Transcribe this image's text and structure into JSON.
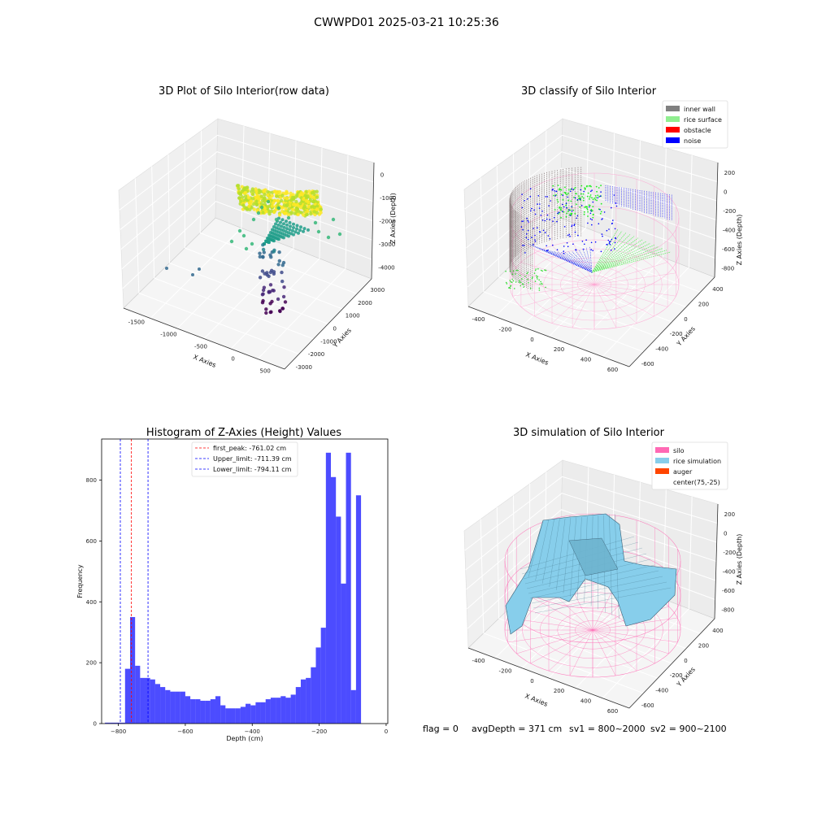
{
  "figure": {
    "title": "CWWPD01 2025-03-21 10:25:36",
    "status": {
      "flag": "flag = 0",
      "avg_depth": "avgDepth = 371 cm",
      "sv1": "sv1 = 800~2000",
      "sv2": "sv2 = 900~2100"
    }
  },
  "chart_data": [
    {
      "type": "scatter",
      "title": "3D Plot of Silo Interior(row data)",
      "xlabel": "X Axies",
      "ylabel": "Y Axies",
      "zlabel": "Z Axies (Depth)",
      "x_ticks": [
        "-1500",
        "-1000",
        "-500",
        "0",
        "500"
      ],
      "y_ticks": [
        "-3000",
        "-2000",
        "-1000",
        "0",
        "1000",
        "2000",
        "3000"
      ],
      "z_ticks": [
        "0",
        "-1000",
        "-2000",
        "-3000",
        "-4000"
      ],
      "colormap": "viridis",
      "note_points": "point cloud colored by depth (yellow = shallow, purple = deep)"
    },
    {
      "type": "scatter",
      "title": "3D classify of Silo Interior",
      "xlabel": "X Axies",
      "ylabel": "Y Axies",
      "zlabel": "Z Axies (Depth)",
      "x_ticks": [
        "-400",
        "-200",
        "0",
        "200",
        "400",
        "600"
      ],
      "y_ticks": [
        "-600",
        "-400",
        "-200",
        "0",
        "200",
        "400"
      ],
      "z_ticks": [
        "200",
        "0",
        "-200",
        "-400",
        "-600",
        "-800"
      ],
      "legend": [
        {
          "label": "inner wall",
          "color": "#808080"
        },
        {
          "label": "rice surface",
          "color": "#90ee90"
        },
        {
          "label": "obstacle",
          "color": "#ff0000"
        },
        {
          "label": "noise",
          "color": "#0000ff"
        }
      ],
      "legend_position": "top-right"
    },
    {
      "type": "bar",
      "title": "Histogram of Z-Axies (Height) Values",
      "xlabel": "Depth (cm)",
      "ylabel": "Frequency",
      "xlim": [
        -850,
        5
      ],
      "ylim": [
        0,
        935
      ],
      "x_ticks": [
        -800,
        -600,
        -400,
        -200,
        0
      ],
      "y_ticks": [
        0,
        200,
        400,
        600,
        800
      ],
      "bin_start": -840,
      "bin_width": 15,
      "values": [
        3,
        3,
        3,
        3,
        180,
        350,
        190,
        150,
        150,
        145,
        130,
        120,
        110,
        105,
        105,
        105,
        90,
        80,
        80,
        75,
        75,
        80,
        90,
        60,
        50,
        50,
        50,
        55,
        65,
        60,
        70,
        70,
        80,
        85,
        85,
        90,
        85,
        95,
        120,
        145,
        150,
        185,
        250,
        315,
        890,
        810,
        680,
        460,
        890,
        110,
        750
      ],
      "bar_color": "#0000ff",
      "lines": [
        {
          "label": "first_peak: -761.02 cm",
          "x": -761.02,
          "color": "#ff0000"
        },
        {
          "label": "Upper_limit: -711.39 cm",
          "x": -711.39,
          "color": "#0000ff"
        },
        {
          "label": "Lower_limit: -794.11 cm",
          "x": -794.11,
          "color": "#0000ff"
        }
      ],
      "legend_position": "top-center"
    },
    {
      "type": "scatter",
      "title": "3D simulation of Silo Interior",
      "xlabel": "X Axies",
      "ylabel": "Y Axies",
      "zlabel": "Z Axies (Depth)",
      "x_ticks": [
        "-400",
        "-200",
        "0",
        "200",
        "400",
        "600"
      ],
      "y_ticks": [
        "-600",
        "-400",
        "-200",
        "0",
        "200",
        "400"
      ],
      "z_ticks": [
        "200",
        "0",
        "-200",
        "-400",
        "-600",
        "-800"
      ],
      "legend": [
        {
          "label": "silo",
          "color": "#ff69b4"
        },
        {
          "label": "rice simulation",
          "color": "#87ceeb"
        },
        {
          "label": "auger",
          "color": "#ff4500"
        },
        {
          "label": "center(75,-25)",
          "color": "#ffffff"
        }
      ],
      "legend_position": "top-right"
    }
  ]
}
